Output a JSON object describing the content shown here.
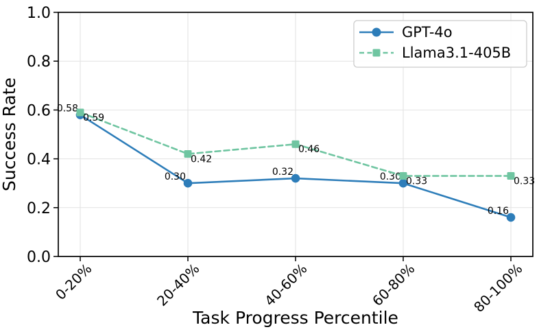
{
  "chart_data": {
    "type": "line",
    "title": "",
    "xlabel": "Task Progress Percentile",
    "ylabel": "Success Rate",
    "categories": [
      "0-20%",
      "20-40%",
      "40-60%",
      "60-80%",
      "80-100%"
    ],
    "ylim": [
      0.0,
      1.0
    ],
    "ytick_values": [
      0.0,
      0.2,
      0.4,
      0.6,
      0.8,
      1.0
    ],
    "ytick_labels": [
      "0.0",
      "0.2",
      "0.4",
      "0.6",
      "0.8",
      "1.0"
    ],
    "grid": true,
    "legend": {
      "position": "upper right",
      "entries": [
        "GPT-4o",
        "Llama3.1-405B"
      ]
    },
    "series": [
      {
        "name": "GPT-4o",
        "color": "#2d7db9",
        "line_style": "solid",
        "marker": "circle",
        "values": [
          0.58,
          0.3,
          0.32,
          0.3,
          0.16
        ],
        "point_labels": [
          "0.58",
          "0.30",
          "0.32",
          "0.30",
          "0.16"
        ],
        "label_side": "left-above"
      },
      {
        "name": "Llama3.1-405B",
        "color": "#6fc5a1",
        "line_style": "dashed",
        "marker": "square",
        "values": [
          0.59,
          0.42,
          0.46,
          0.33,
          0.33
        ],
        "point_labels": [
          "0.59",
          "0.42",
          "0.46",
          "0.33",
          "0.33"
        ],
        "label_side": "right-below"
      }
    ]
  },
  "colors": {
    "grid": "#e2e2e2",
    "axis": "#000000",
    "tick_text": "#000000",
    "annotation_text": "#000000",
    "legend_border": "#cccccc",
    "legend_background": "#ffffff",
    "background": "#ffffff"
  }
}
